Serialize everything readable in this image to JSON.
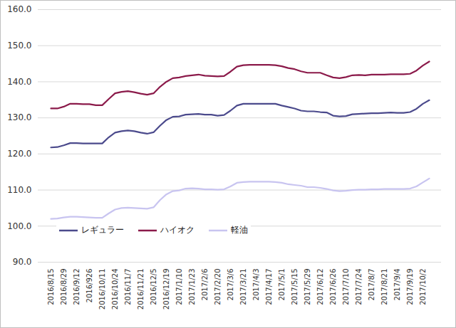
{
  "chart_data": {
    "type": "line",
    "categories": [
      "2016/8/15",
      null,
      "2016/8/29",
      null,
      "2016/9/12",
      null,
      "2016/926",
      null,
      "2016/10/11",
      null,
      "2016/10/24",
      null,
      "2016/11/7",
      null,
      "2016/11/21",
      null,
      "2016/12/5",
      null,
      "2016/12/19",
      null,
      "2017/1/10",
      null,
      "2017/1/23",
      null,
      "2017/2/6",
      null,
      "2017/2/20",
      null,
      "2017/3/6",
      null,
      "2017/3/21",
      null,
      "2017/4/3",
      null,
      "2017/4/17",
      null,
      "2017/5/1",
      null,
      "2017/5/15",
      null,
      "2017/5/29",
      null,
      "2017/6/12",
      null,
      "2017/6/26",
      null,
      "2017/7/10",
      null,
      "2017/7/24",
      null,
      "2017/8/7",
      null,
      "2017/8/21",
      null,
      "2017/9/4",
      null,
      "2017/9/19",
      null,
      "2017/10/2",
      null
    ],
    "series": [
      {
        "name": "レギュラー",
        "color": "#4b4a8c",
        "values": [
          121.8,
          121.9,
          122.4,
          123.0,
          123.0,
          122.9,
          122.9,
          122.9,
          122.9,
          124.6,
          125.9,
          126.3,
          126.5,
          126.3,
          125.9,
          125.6,
          126.0,
          127.8,
          129.4,
          130.3,
          130.4,
          130.9,
          131.0,
          131.1,
          130.9,
          130.9,
          130.6,
          130.8,
          132.0,
          133.4,
          133.9,
          133.9,
          133.9,
          133.9,
          133.9,
          133.9,
          133.4,
          133.0,
          132.6,
          132.0,
          131.8,
          131.8,
          131.6,
          131.5,
          130.6,
          130.4,
          130.5,
          131.0,
          131.1,
          131.2,
          131.3,
          131.3,
          131.4,
          131.5,
          131.4,
          131.4,
          131.6,
          132.5,
          133.9,
          134.9
        ]
      },
      {
        "name": "ハイオク",
        "color": "#8b1a4a",
        "values": [
          132.6,
          132.6,
          133.1,
          133.9,
          133.9,
          133.8,
          133.8,
          133.5,
          133.5,
          135.2,
          136.8,
          137.2,
          137.4,
          137.1,
          136.7,
          136.4,
          136.8,
          138.6,
          140.0,
          141.0,
          141.2,
          141.6,
          141.8,
          142.0,
          141.7,
          141.6,
          141.5,
          141.6,
          142.8,
          144.2,
          144.6,
          144.7,
          144.7,
          144.7,
          144.7,
          144.6,
          144.3,
          143.8,
          143.5,
          142.9,
          142.5,
          142.5,
          142.5,
          141.8,
          141.2,
          141.0,
          141.3,
          141.8,
          141.9,
          141.8,
          142.0,
          142.0,
          142.0,
          142.1,
          142.1,
          142.1,
          142.2,
          143.1,
          144.5,
          145.6
        ]
      },
      {
        "name": "軽油",
        "color": "#c8c4f0",
        "values": [
          102.0,
          102.1,
          102.4,
          102.6,
          102.6,
          102.5,
          102.4,
          102.3,
          102.3,
          103.5,
          104.6,
          105.0,
          105.1,
          105.0,
          104.9,
          104.8,
          105.2,
          107.2,
          108.8,
          109.7,
          109.9,
          110.4,
          110.5,
          110.4,
          110.2,
          110.2,
          110.1,
          110.2,
          111.0,
          112.0,
          112.2,
          112.3,
          112.3,
          112.3,
          112.3,
          112.2,
          112.0,
          111.6,
          111.4,
          111.2,
          110.8,
          110.8,
          110.6,
          110.3,
          109.9,
          109.7,
          109.8,
          110.0,
          110.1,
          110.1,
          110.2,
          110.2,
          110.3,
          110.3,
          110.3,
          110.3,
          110.4,
          111.0,
          112.1,
          113.2
        ]
      }
    ],
    "ylim": [
      90,
      160
    ],
    "yticks": [
      {
        "value": 90,
        "label": "90.0"
      },
      {
        "value": 100,
        "label": "100.0"
      },
      {
        "value": 110,
        "label": "110.0"
      },
      {
        "value": 120,
        "label": "120.0"
      },
      {
        "value": 130,
        "label": "130.0"
      },
      {
        "value": 140,
        "label": "140.0"
      },
      {
        "value": 150,
        "label": "150.0"
      },
      {
        "value": 160,
        "label": "160.0"
      }
    ],
    "grid": true,
    "legend": "bottom-left"
  }
}
